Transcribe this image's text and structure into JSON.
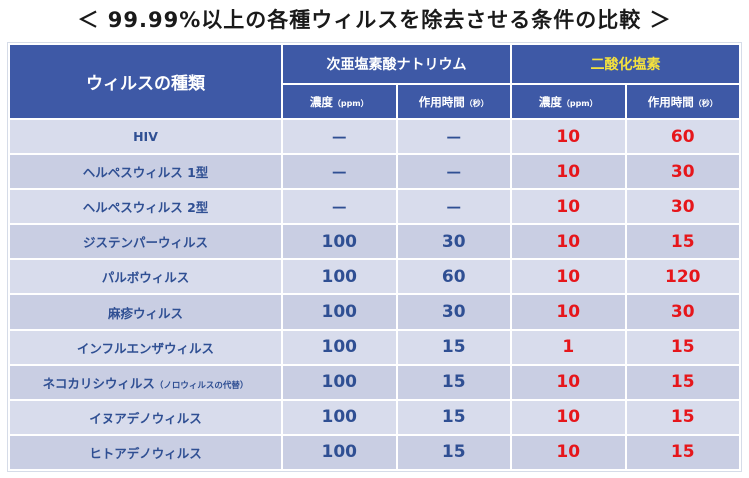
{
  "title": "＜ 99.99%以上の各種ウィルスを除去させる条件の比較 ＞",
  "table": {
    "corner_label": "ウィルスの種類",
    "groups": [
      "次亜塩素酸ナトリウム",
      "二酸化塩素"
    ],
    "subheaders": [
      {
        "label": "濃度",
        "unit": "（ppm）"
      },
      {
        "label": "作用時間",
        "unit": "（秒）"
      },
      {
        "label": "濃度",
        "unit": "（ppm）"
      },
      {
        "label": "作用時間",
        "unit": "（秒）"
      }
    ],
    "rows": [
      {
        "name": "HIV",
        "note": "",
        "naclo_ppm": "－",
        "naclo_sec": "－",
        "clo2_ppm": "10",
        "clo2_sec": "60"
      },
      {
        "name": "ヘルペスウィルス 1型",
        "note": "",
        "naclo_ppm": "－",
        "naclo_sec": "－",
        "clo2_ppm": "10",
        "clo2_sec": "30"
      },
      {
        "name": "ヘルペスウィルス 2型",
        "note": "",
        "naclo_ppm": "－",
        "naclo_sec": "－",
        "clo2_ppm": "10",
        "clo2_sec": "30"
      },
      {
        "name": "ジステンパーウィルス",
        "note": "",
        "naclo_ppm": "100",
        "naclo_sec": "30",
        "clo2_ppm": "10",
        "clo2_sec": "15"
      },
      {
        "name": "パルボウィルス",
        "note": "",
        "naclo_ppm": "100",
        "naclo_sec": "60",
        "clo2_ppm": "10",
        "clo2_sec": "120"
      },
      {
        "name": "麻疹ウィルス",
        "note": "",
        "naclo_ppm": "100",
        "naclo_sec": "30",
        "clo2_ppm": "10",
        "clo2_sec": "30"
      },
      {
        "name": "インフルエンザウィルス",
        "note": "",
        "naclo_ppm": "100",
        "naclo_sec": "15",
        "clo2_ppm": "1",
        "clo2_sec": "15"
      },
      {
        "name": "ネコカリシウィルス",
        "note": "（ノロウィルスの代替）",
        "naclo_ppm": "100",
        "naclo_sec": "15",
        "clo2_ppm": "10",
        "clo2_sec": "15"
      },
      {
        "name": "イヌアデノウィルス",
        "note": "",
        "naclo_ppm": "100",
        "naclo_sec": "15",
        "clo2_ppm": "10",
        "clo2_sec": "15"
      },
      {
        "name": "ヒトアデノウィルス",
        "note": "",
        "naclo_ppm": "100",
        "naclo_sec": "15",
        "clo2_ppm": "10",
        "clo2_sec": "15"
      }
    ]
  },
  "colors": {
    "header_bg": "#3e59a6",
    "header_text": "#ffffff",
    "header_highlight": "#f5e23d",
    "row_bg_light": "#d8dcec",
    "row_bg_dark": "#c9cee3",
    "body_text": "#2f4f93",
    "highlight_value": "#e6161b"
  }
}
